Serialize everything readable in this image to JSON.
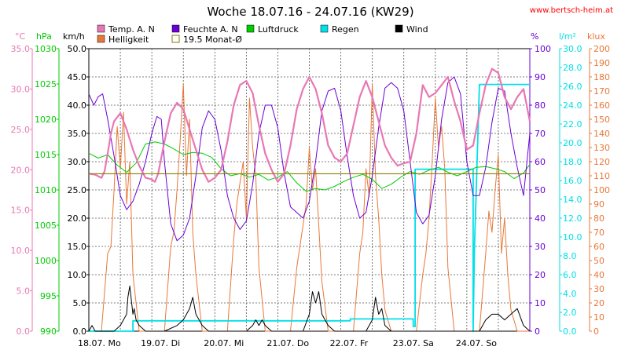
{
  "header": {
    "title": "Woche 18.07.16 - 24.07.16 (KW29)",
    "url": "www.bertsch-heim.at"
  },
  "axes": {
    "units": {
      "temp": "°C",
      "press": "hPa",
      "wind": "km/h",
      "hum": "%",
      "rain": "l/m²",
      "lux": "klux"
    },
    "temp_ticks": [
      "35.0",
      "30.0",
      "25.0",
      "20.0",
      "15.0",
      "10.0",
      "5.0",
      "0.0"
    ],
    "press_ticks": [
      "1030",
      "1025",
      "1020",
      "1015",
      "1010",
      "1005",
      "1000",
      "995",
      "990"
    ],
    "wind_ticks": [
      "50.0",
      "45.0",
      "40.0",
      "35.0",
      "30.0",
      "25.0",
      "20.0",
      "15.0",
      "10.0",
      "5.0",
      "0.0"
    ],
    "hum_ticks": [
      "100",
      "90",
      "80",
      "70",
      "60",
      "50",
      "40",
      "30",
      "20",
      "10",
      "0"
    ],
    "rain_ticks": [
      "30.0",
      "28.0",
      "26.0",
      "24.0",
      "22.0",
      "20.0",
      "18.0",
      "16.0",
      "14.0",
      "12.0",
      "10.0",
      "8.0",
      "6.0",
      "4.0",
      "2.0",
      "0.0"
    ],
    "lux_ticks": [
      "200",
      "190",
      "180",
      "170",
      "160",
      "150",
      "140",
      "130",
      "120",
      "110",
      "100",
      "90",
      "80",
      "70",
      "60",
      "50",
      "40",
      "30",
      "20",
      "10",
      "0"
    ],
    "x_labels": [
      "18.07. Mo",
      "19.07. Di",
      "20.07. Mi",
      "21.07. Do",
      "22.07. Fr",
      "23.07. Sa",
      "24.07. So"
    ]
  },
  "legend": {
    "temp": "Temp. A. N",
    "hum": "Feuchte A. N",
    "press": "Luftdruck",
    "rain": "Regen",
    "wind": "Wind",
    "lux": "Helligkeit",
    "avg": "19.5 Monat-Ø"
  },
  "colors": {
    "temp": "#e878b4",
    "hum": "#6a00d6",
    "press": "#00cc00",
    "rain": "#00e0e8",
    "wind": "#000000",
    "lux": "#e87838",
    "avg": "#8c7a00"
  },
  "chart_data": {
    "type": "line",
    "x_unit": "days",
    "x_range": [
      0,
      7
    ],
    "day_starts": [
      "18.07.",
      "19.07.",
      "20.07.",
      "21.07.",
      "22.07.",
      "23.07.",
      "24.07."
    ],
    "monthly_avg_temp": 19.5,
    "series": [
      {
        "name": "Temp. A. N",
        "axis": "temp",
        "ylim": [
          0,
          35
        ],
        "x": [
          0,
          0.1,
          0.2,
          0.25,
          0.3,
          0.35,
          0.4,
          0.5,
          0.6,
          0.7,
          0.8,
          0.9,
          1.0,
          1.05,
          1.1,
          1.2,
          1.3,
          1.4,
          1.5,
          1.6,
          1.7,
          1.8,
          1.9,
          2.0,
          2.1,
          2.2,
          2.3,
          2.4,
          2.5,
          2.6,
          2.7,
          2.8,
          2.9,
          3.0,
          3.1,
          3.2,
          3.3,
          3.4,
          3.5,
          3.6,
          3.7,
          3.8,
          3.9,
          4.0,
          4.1,
          4.2,
          4.3,
          4.4,
          4.5,
          4.6,
          4.7,
          4.8,
          4.9,
          5.0,
          5.1,
          5.2,
          5.3,
          5.4,
          5.5,
          5.6,
          5.7,
          5.8,
          5.9,
          6.0,
          6.1,
          6.2,
          6.3,
          6.4,
          6.5,
          6.6,
          6.7,
          6.8,
          6.9,
          7.0
        ],
        "y": [
          19.5,
          19.4,
          19.0,
          19.8,
          22.0,
          24.5,
          26.0,
          27.0,
          25.0,
          22.5,
          20.5,
          19.0,
          18.8,
          18.5,
          19.5,
          23.5,
          27.0,
          28.3,
          27.5,
          25.0,
          22.5,
          20.0,
          18.5,
          19.0,
          20.0,
          23.5,
          28.0,
          30.5,
          31.0,
          29.5,
          25.5,
          22.0,
          20.0,
          18.5,
          19.5,
          23.0,
          27.5,
          30.0,
          31.5,
          30.0,
          27.0,
          23.0,
          21.5,
          21.0,
          22.0,
          25.5,
          29.0,
          31.0,
          29.0,
          26.0,
          23.0,
          21.5,
          20.5,
          20.8,
          21.0,
          24.5,
          30.5,
          29.0,
          29.5,
          30.5,
          31.5,
          28.5,
          26.0,
          22.5,
          23.0,
          27.0,
          30.5,
          32.5,
          32.0,
          29.0,
          27.5,
          29.0,
          30.0,
          26.0
        ]
      },
      {
        "name": "Feuchte A. N",
        "axis": "hum",
        "ylim": [
          0,
          100
        ],
        "x": [
          0,
          0.08,
          0.15,
          0.22,
          0.3,
          0.4,
          0.5,
          0.6,
          0.7,
          0.8,
          0.9,
          1.0,
          1.08,
          1.15,
          1.2,
          1.3,
          1.4,
          1.5,
          1.6,
          1.7,
          1.8,
          1.9,
          2.0,
          2.1,
          2.2,
          2.3,
          2.4,
          2.5,
          2.6,
          2.7,
          2.8,
          2.9,
          3.0,
          3.1,
          3.2,
          3.3,
          3.4,
          3.5,
          3.6,
          3.7,
          3.8,
          3.9,
          4.0,
          4.1,
          4.2,
          4.3,
          4.4,
          4.5,
          4.6,
          4.7,
          4.8,
          4.9,
          5.0,
          5.1,
          5.2,
          5.3,
          5.4,
          5.5,
          5.6,
          5.7,
          5.8,
          5.9,
          6.0,
          6.1,
          6.2,
          6.3,
          6.4,
          6.5,
          6.6,
          6.7,
          6.8,
          6.9,
          7.0
        ],
        "y": [
          84,
          80,
          83,
          84,
          75,
          62,
          48,
          43,
          46,
          52,
          60,
          70,
          76,
          75,
          60,
          38,
          32,
          34,
          40,
          55,
          72,
          78,
          75,
          64,
          48,
          40,
          36,
          39,
          52,
          70,
          80,
          80,
          72,
          56,
          44,
          42,
          40,
          46,
          60,
          78,
          85,
          86,
          78,
          62,
          48,
          40,
          42,
          55,
          72,
          86,
          88,
          86,
          78,
          60,
          42,
          38,
          41,
          55,
          75,
          88,
          90,
          84,
          60,
          48,
          48,
          58,
          74,
          86,
          85,
          70,
          58,
          48,
          70
        ]
      },
      {
        "name": "Luftdruck",
        "axis": "press",
        "ylim": [
          990,
          1030
        ],
        "x": [
          0,
          0.15,
          0.3,
          0.45,
          0.6,
          0.75,
          0.9,
          1.05,
          1.2,
          1.35,
          1.5,
          1.65,
          1.8,
          1.95,
          2.1,
          2.25,
          2.4,
          2.55,
          2.7,
          2.85,
          3.0,
          3.15,
          3.3,
          3.45,
          3.6,
          3.75,
          3.9,
          4.05,
          4.2,
          4.35,
          4.5,
          4.65,
          4.8,
          4.95,
          5.1,
          5.25,
          5.4,
          5.55,
          5.7,
          5.85,
          6.0,
          6.15,
          6.3,
          6.45,
          6.6,
          6.75,
          6.9,
          7.0
        ],
        "y": [
          1015.2,
          1014.5,
          1015.0,
          1013.5,
          1012.5,
          1013.8,
          1016.5,
          1016.8,
          1016.5,
          1015.8,
          1015.0,
          1015.3,
          1015.2,
          1014.6,
          1013.0,
          1012.0,
          1012.3,
          1011.8,
          1012.2,
          1011.4,
          1011.8,
          1012.6,
          1011.0,
          1009.8,
          1010.2,
          1010.0,
          1010.5,
          1011.2,
          1011.8,
          1012.2,
          1011.5,
          1010.2,
          1010.8,
          1011.8,
          1012.6,
          1012.2,
          1012.8,
          1013.2,
          1012.5,
          1012.0,
          1012.6,
          1013.2,
          1013.3,
          1013.0,
          1012.6,
          1011.6,
          1012.4,
          1013.6
        ]
      },
      {
        "name": "Regen",
        "axis": "rain",
        "ylim": [
          0,
          30
        ],
        "x": [
          0,
          0.7,
          0.7,
          4.15,
          4.15,
          5.15,
          5.15,
          5.18,
          5.18,
          6.1,
          6.1,
          6.12,
          6.12,
          6.2,
          6.2,
          7.0
        ],
        "y": [
          0,
          0,
          1.1,
          1.1,
          1.3,
          1.3,
          0.5,
          0.5,
          17.2,
          17.2,
          0,
          8.6,
          8.6,
          26.2,
          26.2,
          26.2
        ]
      },
      {
        "name": "Wind",
        "axis": "wind",
        "ylim": [
          0,
          50
        ],
        "x": [
          0,
          0.05,
          0.1,
          0.2,
          0.4,
          0.5,
          0.6,
          0.62,
          0.65,
          0.68,
          0.7,
          0.72,
          0.75,
          0.8,
          0.9,
          1.0,
          1.2,
          1.4,
          1.5,
          1.6,
          1.65,
          1.7,
          1.75,
          1.8,
          1.9,
          2.0,
          2.5,
          2.6,
          2.65,
          2.7,
          2.75,
          2.8,
          2.9,
          3.0,
          3.4,
          3.5,
          3.55,
          3.6,
          3.65,
          3.7,
          3.75,
          3.8,
          3.9,
          4.0,
          4.4,
          4.5,
          4.55,
          4.6,
          4.65,
          4.7,
          4.8,
          4.9,
          5.0,
          5.3,
          5.5,
          6.2,
          6.3,
          6.4,
          6.5,
          6.6,
          6.7,
          6.8,
          6.9,
          7.0
        ],
        "y": [
          0,
          1,
          0,
          0,
          0,
          1,
          3,
          6,
          8,
          5,
          3,
          4,
          2,
          1,
          0,
          0,
          0,
          1,
          2,
          4,
          6,
          3,
          2,
          1,
          0,
          0,
          0,
          1,
          2,
          1,
          2,
          1,
          0,
          0,
          0,
          3,
          7,
          5,
          7,
          3,
          2,
          1,
          0,
          0,
          0,
          2,
          6,
          3,
          4,
          1,
          0,
          0,
          0,
          0,
          0,
          0,
          2,
          3,
          3,
          2,
          3,
          4,
          1,
          0
        ]
      },
      {
        "name": "Helligkeit",
        "axis": "lux",
        "ylim": [
          0,
          200
        ],
        "x": [
          0,
          0.2,
          0.3,
          0.35,
          0.4,
          0.45,
          0.5,
          0.55,
          0.6,
          0.65,
          0.7,
          0.8,
          1.2,
          1.3,
          1.35,
          1.4,
          1.45,
          1.5,
          1.55,
          1.6,
          1.65,
          1.7,
          1.8,
          2.2,
          2.3,
          2.35,
          2.4,
          2.45,
          2.5,
          2.55,
          2.6,
          2.65,
          2.7,
          2.8,
          3.2,
          3.3,
          3.35,
          3.4,
          3.45,
          3.5,
          3.55,
          3.6,
          3.65,
          3.7,
          3.8,
          4.2,
          4.3,
          4.35,
          4.4,
          4.45,
          4.5,
          4.55,
          4.6,
          4.65,
          4.7,
          4.8,
          5.2,
          5.3,
          5.35,
          5.4,
          5.45,
          5.5,
          5.55,
          5.6,
          5.65,
          5.7,
          5.8,
          6.2,
          6.3,
          6.35,
          6.4,
          6.45,
          6.5,
          6.55,
          6.6,
          6.65,
          6.7,
          6.8,
          7.0
        ],
        "y": [
          0,
          0,
          55,
          60,
          100,
          145,
          115,
          155,
          90,
          120,
          40,
          0,
          0,
          60,
          70,
          100,
          135,
          175,
          110,
          150,
          70,
          40,
          0,
          0,
          65,
          90,
          105,
          120,
          80,
          165,
          130,
          110,
          45,
          0,
          0,
          45,
          60,
          75,
          90,
          130,
          100,
          115,
          75,
          35,
          0,
          0,
          55,
          70,
          115,
          95,
          175,
          110,
          80,
          40,
          15,
          0,
          0,
          40,
          55,
          80,
          120,
          165,
          130,
          145,
          115,
          45,
          0,
          0,
          55,
          85,
          70,
          100,
          125,
          55,
          80,
          40,
          15,
          0,
          0
        ]
      }
    ]
  }
}
